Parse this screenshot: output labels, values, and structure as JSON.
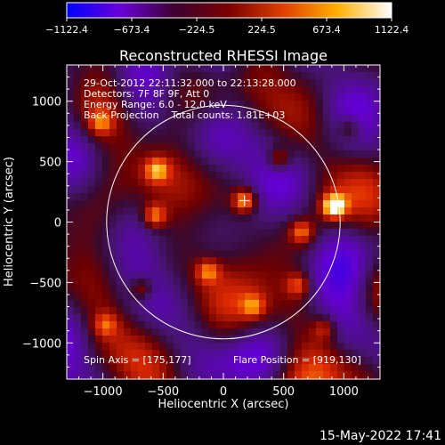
{
  "chart_data": {
    "type": "heatmap",
    "title": "Reconstructed RHESSI Image",
    "xlabel": "Heliocentric X (arcsec)",
    "ylabel": "Heliocentric Y (arcsec)",
    "xlim": [
      -1300,
      1300
    ],
    "ylim": [
      -1300,
      1300
    ],
    "x_ticks": [
      -1000,
      -500,
      0,
      500,
      1000
    ],
    "y_ticks": [
      -1000,
      -500,
      0,
      500,
      1000
    ],
    "x_tick_labels": [
      "−1000",
      "−500",
      "0",
      "500",
      "1000"
    ],
    "y_tick_labels": [
      "−1000",
      "−500",
      "0",
      "500",
      "1000"
    ],
    "colorbar": {
      "range": [
        -1122.4,
        1122.4
      ],
      "ticks": [
        -1122.4,
        -673.4,
        -224.5,
        224.5,
        673.4,
        1122.4
      ],
      "tick_labels": [
        "−1122.4",
        "−673.4",
        "−224.5",
        "224.5",
        "673.4",
        "1122.4"
      ],
      "colors": [
        "#0000ff",
        "#6a00d8",
        "#3d0030",
        "#7a0000",
        "#e04000",
        "#ffb000",
        "#ffffff"
      ]
    },
    "solar_disk_radius_arcsec": 969,
    "sun_center": [
      0,
      0
    ],
    "crosshair_position": [
      175,
      177
    ],
    "annotations": {
      "time_range": "29-Oct-2012 22:11:32.000 to 22:13:28.000",
      "detectors": "Detectors: 7F 8F 9F, Att 0",
      "energy_range": "Energy Range: 6.0 - 12.0 keV",
      "method_counts": "Back Projection    Total counts: 1.81E+03",
      "spin_axis": "Spin Axis = [175,177]",
      "flare_position": "Flare Position = [919,130]"
    },
    "bright_sources": [
      {
        "x": 919,
        "y": 130,
        "value": 1122.4
      },
      {
        "x": 175,
        "y": 177,
        "value": 900
      },
      {
        "x": -550,
        "y": 430,
        "value": 700
      },
      {
        "x": -570,
        "y": 50,
        "value": 750
      },
      {
        "x": 460,
        "y": 520,
        "value": 600
      },
      {
        "x": 650,
        "y": -80,
        "value": 680
      },
      {
        "x": -130,
        "y": -410,
        "value": 620
      },
      {
        "x": 620,
        "y": -520,
        "value": 580
      },
      {
        "x": -680,
        "y": -550,
        "value": 560
      },
      {
        "x": 250,
        "y": -700,
        "value": 540
      },
      {
        "x": -1020,
        "y": 820,
        "value": 520
      },
      {
        "x": 1050,
        "y": 780,
        "value": 500
      },
      {
        "x": -980,
        "y": -850,
        "value": 480
      },
      {
        "x": 840,
        "y": -880,
        "value": 470
      }
    ],
    "grid": false
  },
  "footer": {
    "date": "15-May-2022 17:41"
  }
}
